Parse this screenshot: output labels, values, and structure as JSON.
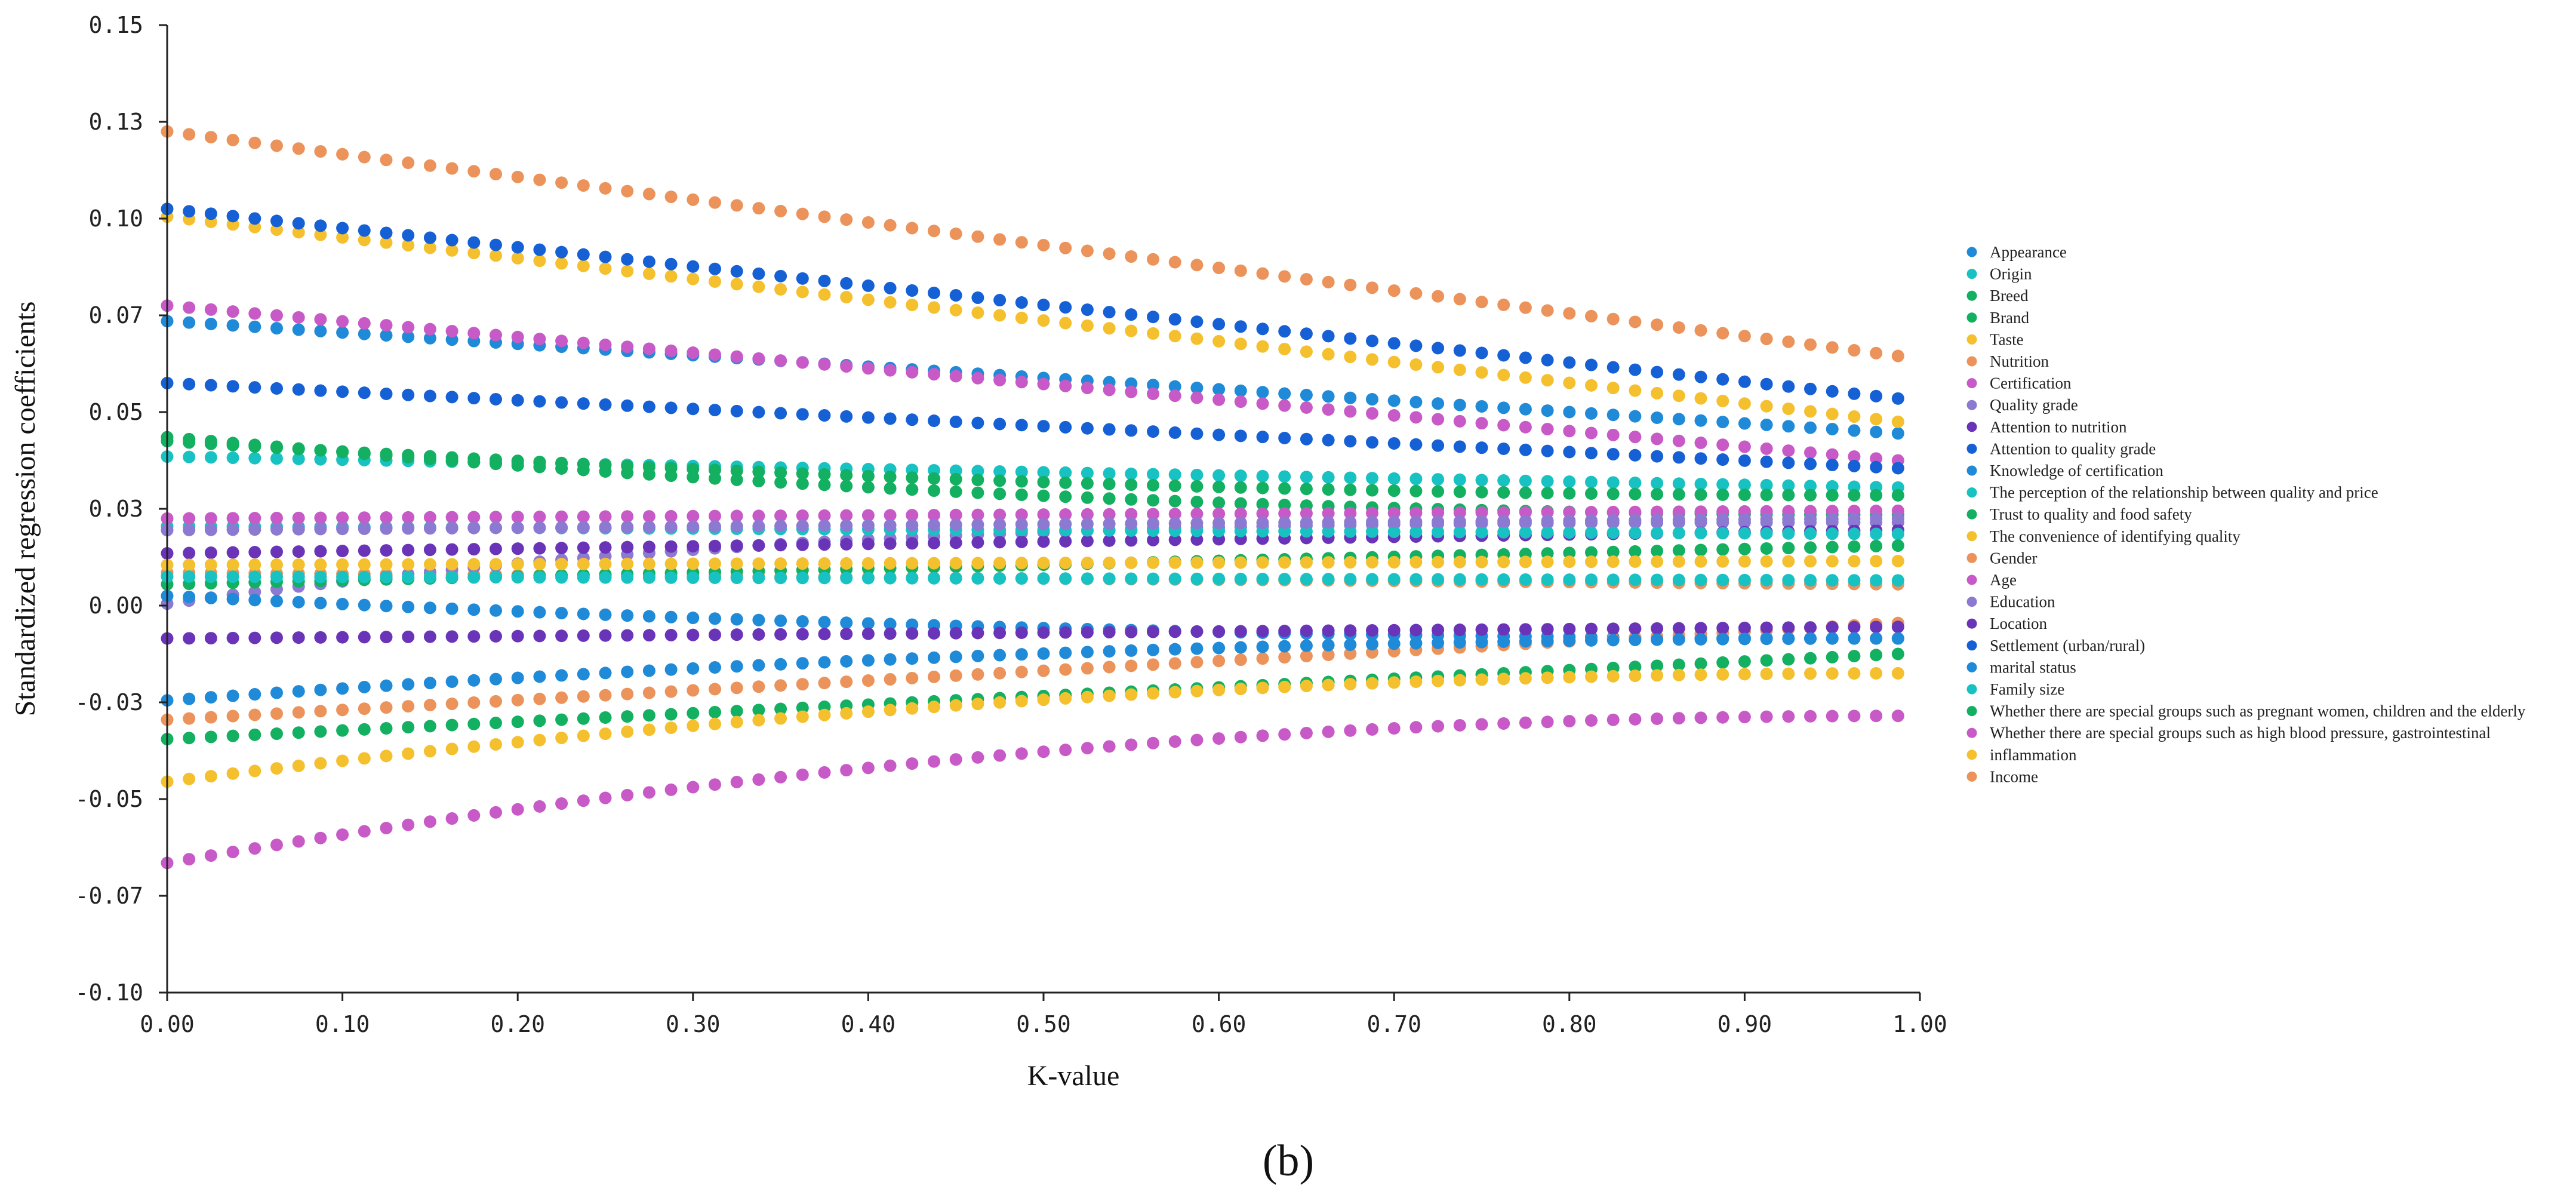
{
  "chart_data": {
    "type": "scatter",
    "title": "",
    "caption": "(b)",
    "xlabel": "K-value",
    "ylabel": "Standardized regression coefficients",
    "xlim": [
      0,
      1
    ],
    "ylim": [
      -0.1,
      0.15
    ],
    "x_ticks": [
      0,
      0.1,
      0.2,
      0.3,
      0.4,
      0.5,
      0.6,
      0.7,
      0.8,
      0.9,
      1.0
    ],
    "x_tick_labels": [
      "0.00",
      "0.10",
      "0.20",
      "0.30",
      "0.40",
      "0.50",
      "0.60",
      "0.70",
      "0.80",
      "0.90",
      "1.00"
    ],
    "y_ticks": [
      -0.1,
      -0.075,
      -0.05,
      -0.025,
      0,
      0.025,
      0.05,
      0.075,
      0.1,
      0.125,
      0.15
    ],
    "y_tick_labels": [
      "-0.10",
      "-0.07",
      "-0.05",
      "-0.03",
      "0.00",
      "0.03",
      "0.05",
      "0.07",
      "0.10",
      "0.13",
      "0.15"
    ],
    "grid": false,
    "legend_position": "right",
    "x_start": 0,
    "x_step": 0.0125,
    "num_points": 80,
    "series": [
      {
        "name": "Appearance",
        "color": "#1f8ad8",
        "start": 0.0735,
        "end": 0.0445,
        "shape": "linear"
      },
      {
        "name": "Origin",
        "color": "#19c2c2",
        "start": 0.0385,
        "end": 0.0305,
        "shape": "linear"
      },
      {
        "name": "Breed",
        "color": "#12b060",
        "start": 0.0425,
        "end": 0.0285,
        "shape": "decay"
      },
      {
        "name": "Brand",
        "color": "#12b060",
        "start": 0.0435,
        "end": 0.0235,
        "shape": "decay"
      },
      {
        "name": "Taste",
        "color": "#f5c02e",
        "start": 0.1005,
        "end": 0.0475,
        "shape": "linear"
      },
      {
        "name": "Nutrition",
        "color": "#eb935a",
        "start": 0.0085,
        "end": 0.0055,
        "shape": "linear"
      },
      {
        "name": "Certification",
        "color": "#c85ac8",
        "start": 0.0775,
        "end": 0.0375,
        "shape": "linear"
      },
      {
        "name": "Quality grade",
        "color": "#8c7ad2",
        "start": 0.0005,
        "end": 0.0215,
        "shape": "rise"
      },
      {
        "name": "Attention to nutrition",
        "color": "#6a34b8",
        "start": 0.0135,
        "end": 0.0195,
        "shape": "linear"
      },
      {
        "name": "Attention to quality grade",
        "color": "#1660d6",
        "start": 0.1025,
        "end": 0.0535,
        "shape": "linear"
      },
      {
        "name": "Knowledge of certification",
        "color": "#1f8ad8",
        "start": 0.0025,
        "end": -0.0085,
        "shape": "decay"
      },
      {
        "name": "The perception of the relationship between quality and price",
        "color": "#19c2c2",
        "start": 0.0205,
        "end": 0.0185,
        "shape": "linear"
      },
      {
        "name": "Trust to quality and food safety",
        "color": "#12b060",
        "start": 0.0055,
        "end": 0.0155,
        "shape": "linear"
      },
      {
        "name": "The convenience of identifying quality",
        "color": "#f5c02e",
        "start": 0.0105,
        "end": 0.0115,
        "shape": "linear"
      },
      {
        "name": "Gender",
        "color": "#eb935a",
        "start": -0.0295,
        "end": -0.0045,
        "shape": "linear"
      },
      {
        "name": "Age",
        "color": "#c85ac8",
        "start": 0.0225,
        "end": 0.0245,
        "shape": "linear"
      },
      {
        "name": "Education",
        "color": "#8c7ad2",
        "start": 0.0195,
        "end": 0.0225,
        "shape": "linear"
      },
      {
        "name": "Location",
        "color": "#6a34b8",
        "start": -0.0085,
        "end": -0.0055,
        "shape": "linear"
      },
      {
        "name": "Settlement (urban/rural)",
        "color": "#1660d6",
        "start": 0.0575,
        "end": 0.0355,
        "shape": "linear"
      },
      {
        "name": "marital status",
        "color": "#1f8ad8",
        "start": -0.0245,
        "end": -0.0085,
        "shape": "decay"
      },
      {
        "name": "Family size",
        "color": "#19c2c2",
        "start": 0.0075,
        "end": 0.0065,
        "shape": "linear"
      },
      {
        "name": "Whether there are special groups such as pregnant women, children and the elderly",
        "color": "#12b060",
        "start": -0.0345,
        "end": -0.0125,
        "shape": "linear"
      },
      {
        "name": "Whether there are special groups such as high blood pressure, gastrointestinal",
        "color": "#c85ac8",
        "start": -0.0665,
        "end": -0.0285,
        "shape": "decay"
      },
      {
        "name": "inflammation",
        "color": "#f5c02e",
        "start": -0.0455,
        "end": -0.0175,
        "shape": "decay"
      },
      {
        "name": "Income",
        "color": "#eb935a",
        "start": 0.1225,
        "end": 0.0645,
        "shape": "linear"
      }
    ]
  }
}
